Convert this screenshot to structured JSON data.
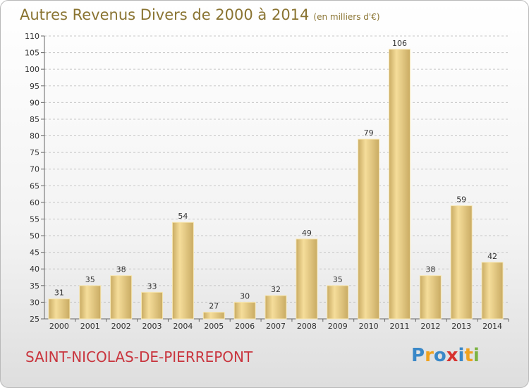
{
  "chart_data": {
    "type": "bar",
    "title": "Autres Revenus Divers de 2000 à 2014",
    "subtitle": "(en milliers d'€)",
    "categories": [
      "2000",
      "2001",
      "2002",
      "2003",
      "2004",
      "2005",
      "2006",
      "2007",
      "2008",
      "2009",
      "2010",
      "2011",
      "2012",
      "2013",
      "2014"
    ],
    "values": [
      31,
      35,
      38,
      33,
      54,
      27,
      30,
      32,
      49,
      35,
      79,
      106,
      38,
      59,
      42
    ],
    "ylim": [
      25,
      110
    ],
    "yticks": [
      25,
      30,
      35,
      40,
      45,
      50,
      55,
      60,
      65,
      70,
      75,
      80,
      85,
      90,
      95,
      100,
      105,
      110
    ],
    "xlabel": "",
    "ylabel": "",
    "grid": true,
    "colors": {
      "bar_light": "#f5dd9a",
      "bar_dark": "#c9ab63",
      "bar_edge": "#f7e7b3",
      "grid": "#c6c6c6",
      "title": "#8a7432"
    }
  },
  "commune": "SAINT-NICOLAS-DE-PIERREPONT",
  "logo": {
    "letters": [
      "P",
      "r",
      "o",
      "x",
      "i",
      "t",
      "i"
    ],
    "colors": [
      "#3a88c8",
      "#f0a21f",
      "#3a88c8",
      "#d7322f",
      "#3a88c8",
      "#f0a21f",
      "#7cb342"
    ]
  }
}
